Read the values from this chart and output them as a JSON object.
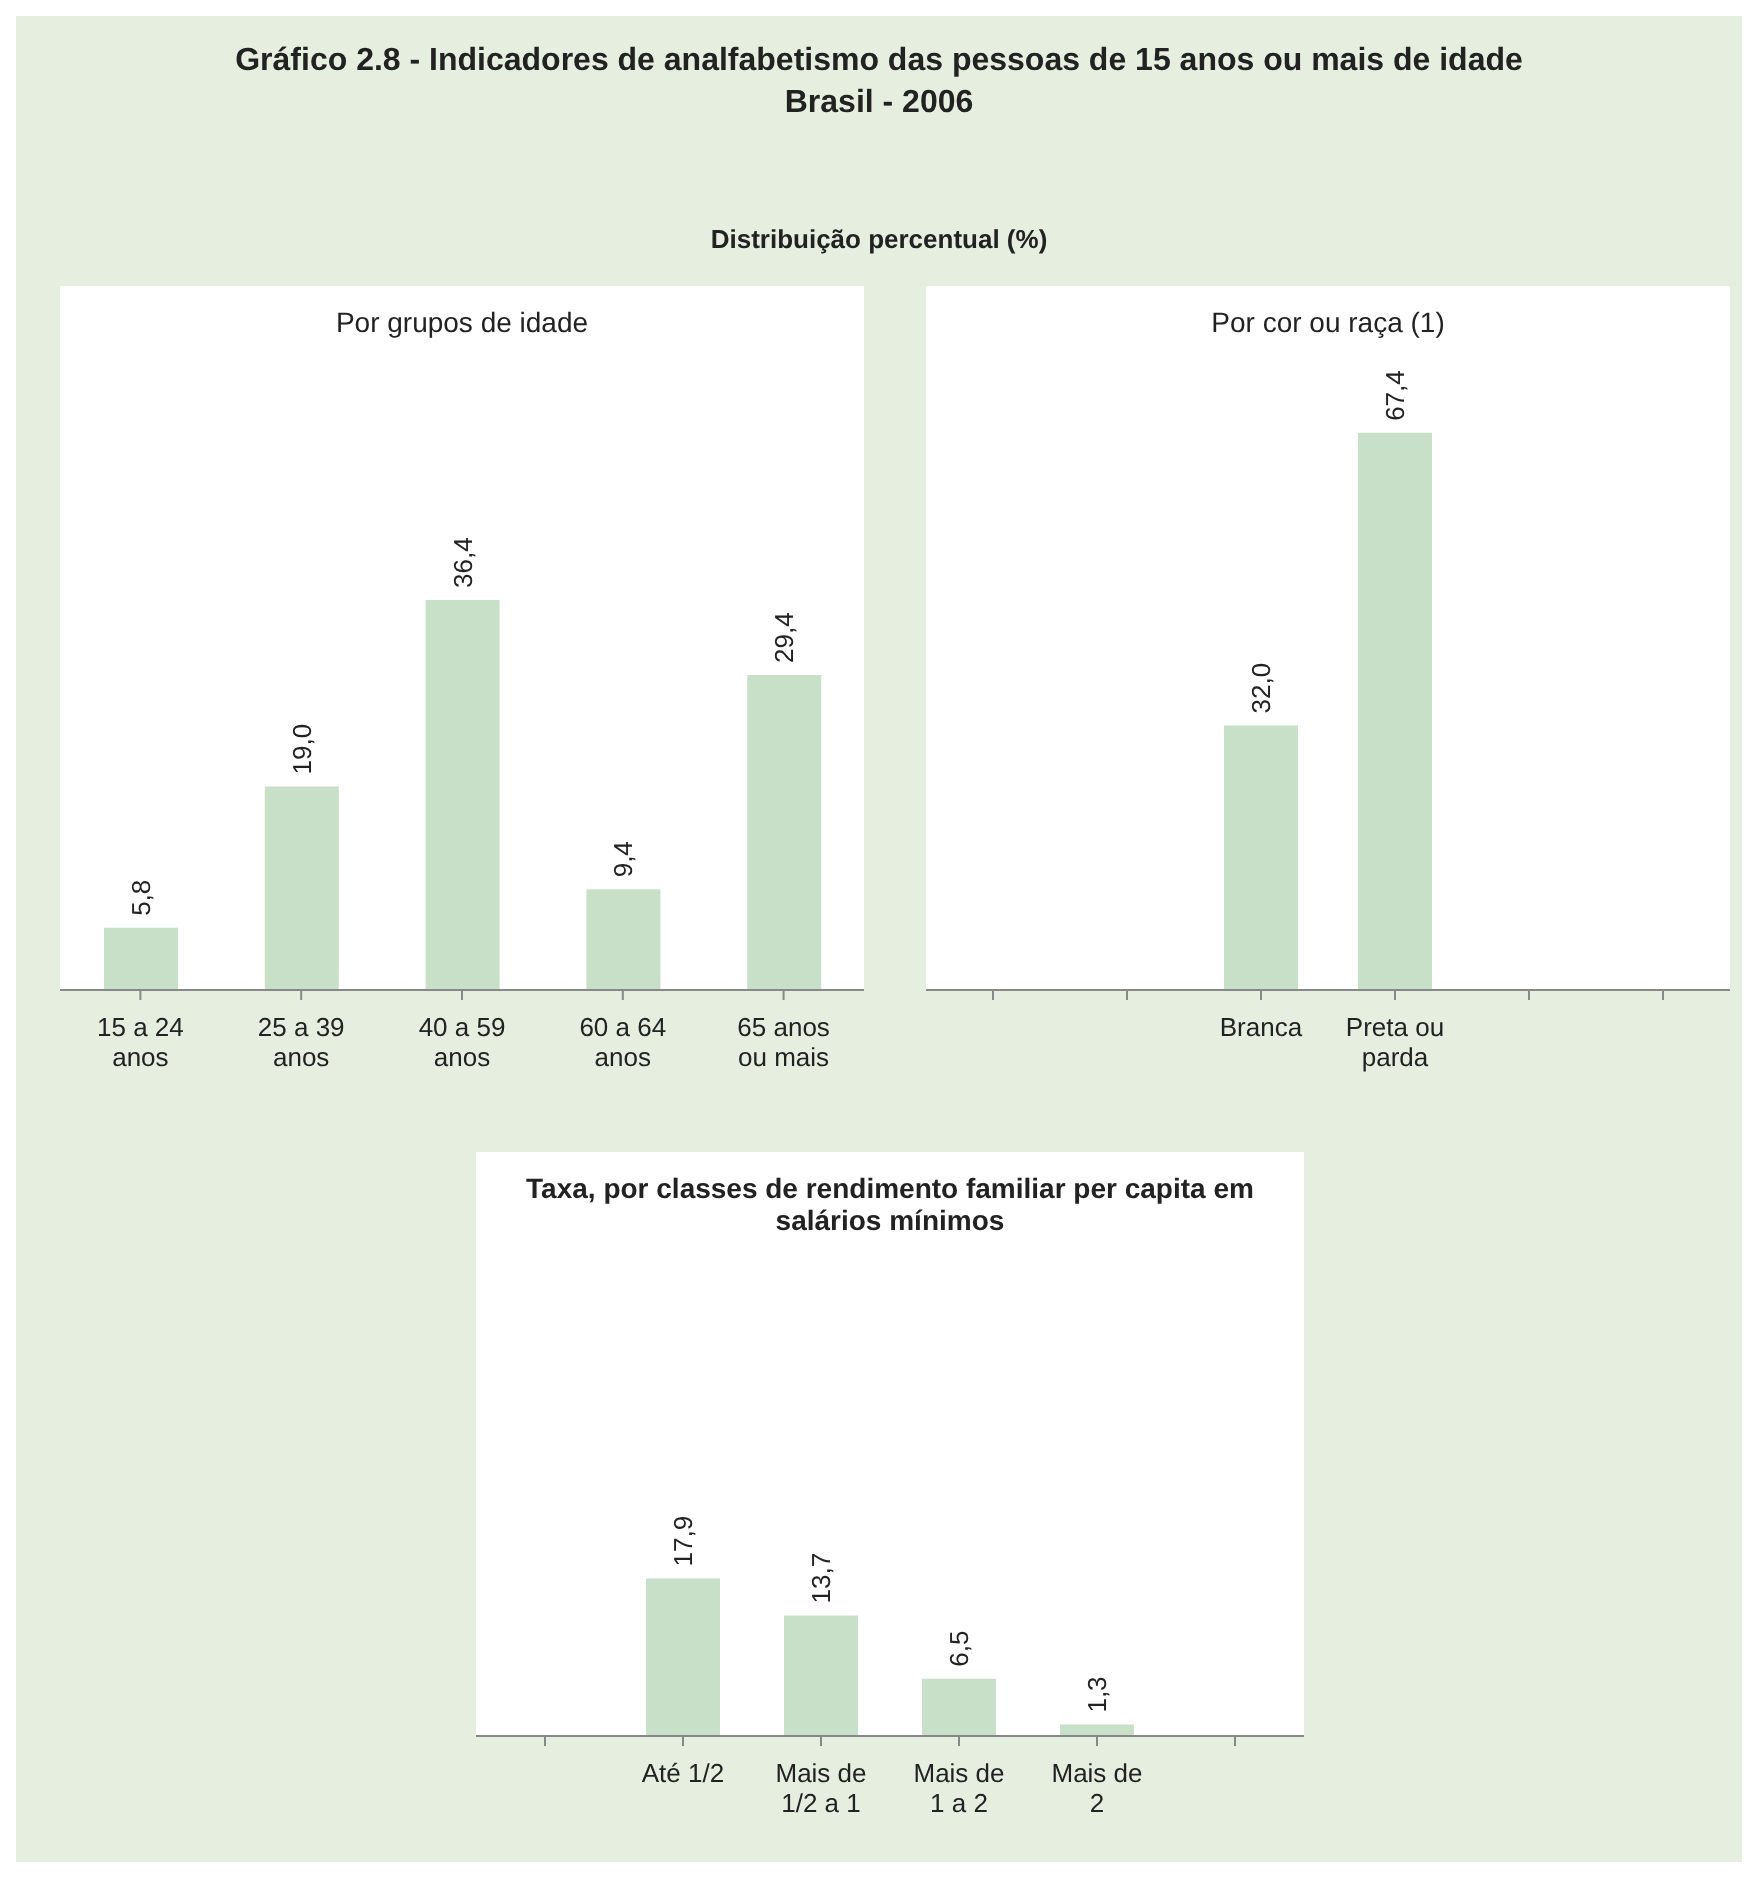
{
  "chart_data": [
    {
      "type": "bar",
      "title": "Por grupos de idade",
      "annotations": [
        "Gráfico 2.8 - Indicadores de analfabetismo das pessoas de 15 anos ou mais de idade",
        "Brasil - 2006",
        "Distribuição percentual (%)"
      ],
      "categories": [
        "15 a 24 anos",
        "25 a 39 anos",
        "40 a 59 anos",
        "60 a 64 anos",
        "65 anos ou mais"
      ],
      "values": [
        5.8,
        19.0,
        36.4,
        9.4,
        29.4
      ],
      "value_labels": [
        "5,8",
        "19,0",
        "36,4",
        "9,4",
        "29,4"
      ],
      "color": "#c8e0c8",
      "grid": false,
      "legend": false
    },
    {
      "type": "bar",
      "title": "Por cor ou raça (1)",
      "categories": [
        null,
        null,
        "Branca",
        "Preta ou parda",
        null,
        null
      ],
      "values": [
        null,
        null,
        32.0,
        67.4,
        null,
        null
      ],
      "value_labels": [
        null,
        null,
        "32,0",
        "67,4",
        null,
        null
      ],
      "color": "#c8e0c8",
      "grid": false,
      "legend": false
    },
    {
      "type": "bar",
      "title": "Taxa, por classes de rendimento familiar per capita em salários mínimos",
      "categories": [
        null,
        "Até 1/2",
        "Mais de 1/2 a 1",
        "Mais de 1 a 2",
        "Mais de 2",
        null
      ],
      "values": [
        null,
        17.9,
        13.7,
        6.5,
        1.3,
        null
      ],
      "value_labels": [
        null,
        "17,9",
        "13,7",
        "6,5",
        "1,3",
        null
      ],
      "color": "#c8e0c8",
      "grid": false,
      "legend": false
    }
  ]
}
